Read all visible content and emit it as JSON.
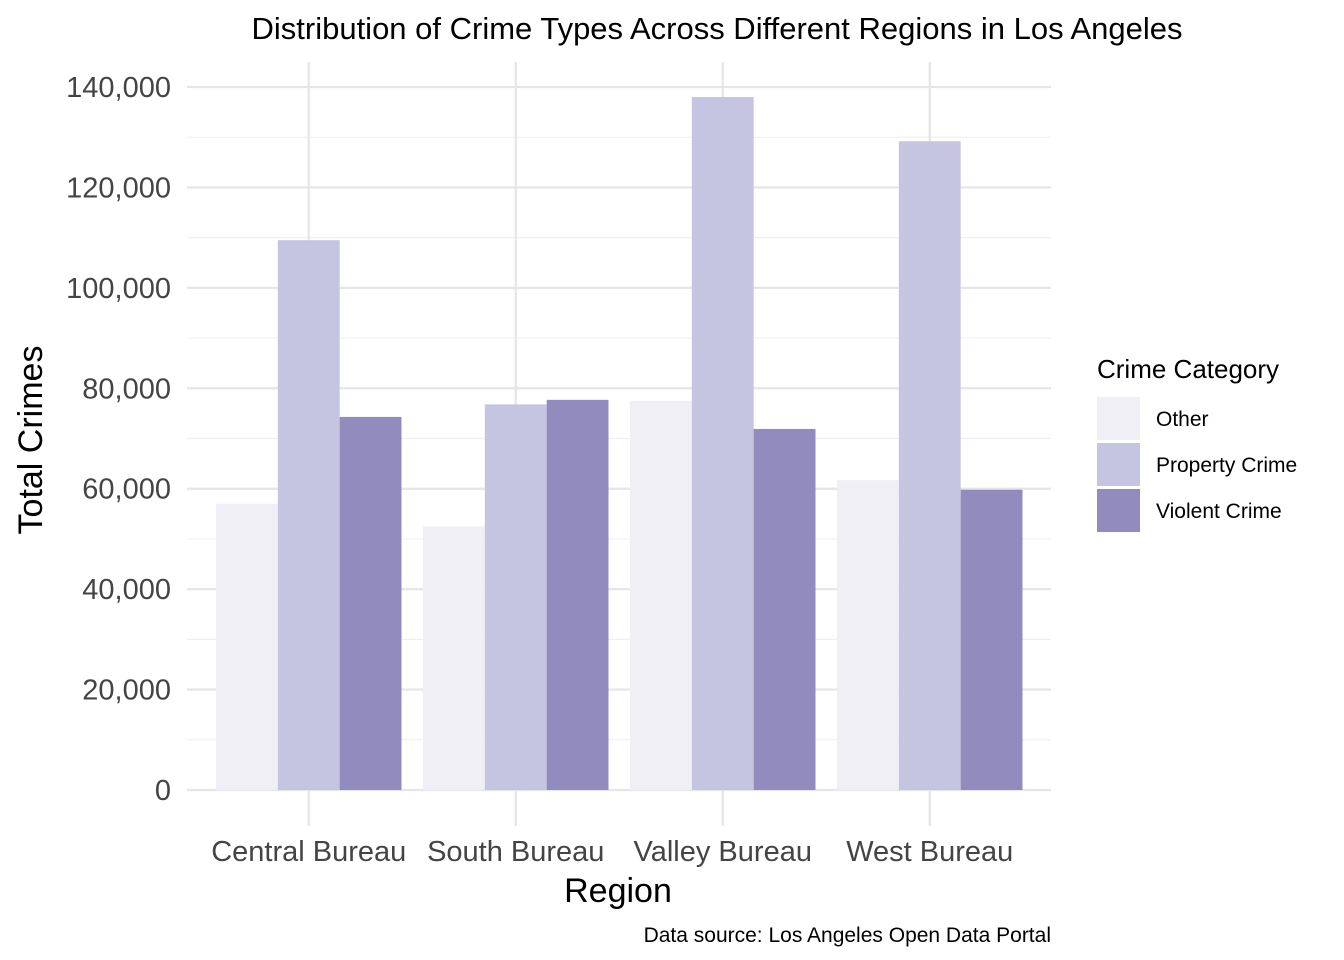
{
  "chart_data": {
    "type": "bar",
    "title": "Distribution of Crime Types Across Different Regions in Los Angeles",
    "xlabel": "Region",
    "ylabel": "Total Crimes",
    "caption": "Data source: Los Angeles Open Data Portal",
    "categories": [
      "Central Bureau",
      "South Bureau",
      "Valley Bureau",
      "West Bureau"
    ],
    "series": [
      {
        "name": "Other",
        "color": "#efeff5",
        "values": [
          57000,
          52500,
          77500,
          61700
        ]
      },
      {
        "name": "Property Crime",
        "color": "#c5c5e2",
        "values": [
          109500,
          76800,
          138000,
          129200
        ]
      },
      {
        "name": "Violent Crime",
        "color": "#928bbe",
        "values": [
          74300,
          77700,
          71900,
          59800
        ]
      }
    ],
    "ylim": [
      0,
      140000
    ],
    "yticks": [
      0,
      20000,
      40000,
      60000,
      80000,
      100000,
      120000,
      140000
    ],
    "ytick_labels": [
      "0",
      "20,000",
      "40,000",
      "60,000",
      "80,000",
      "100,000",
      "120,000",
      "140,000"
    ],
    "legend_title": "Crime Category",
    "legend_position": "right",
    "grid": true
  }
}
